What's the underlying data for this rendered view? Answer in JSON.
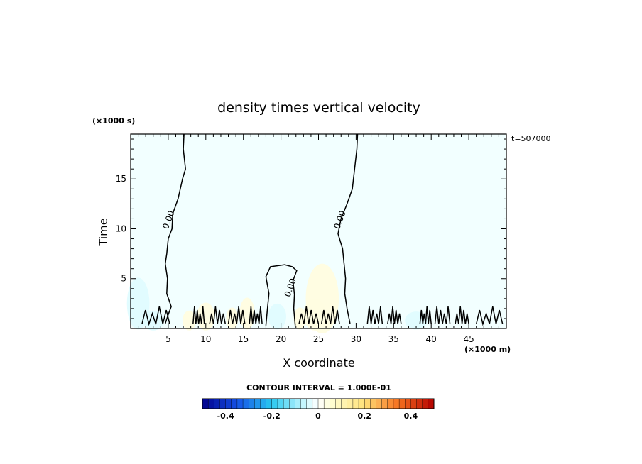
{
  "chart_data": {
    "type": "heatmap",
    "title": "density times vertical velocity",
    "xlabel": "X coordinate",
    "ylabel": "Time",
    "x_unit": "(×1000 m)",
    "y_unit": "(×1000 s)",
    "time_stamp": "t=507000",
    "xlim": [
      0,
      50
    ],
    "ylim": [
      0,
      19.5
    ],
    "x_ticks": [
      5,
      10,
      15,
      20,
      25,
      30,
      35,
      40,
      45
    ],
    "x_tick_labels": [
      "5",
      "10",
      "15",
      "20",
      "25",
      "30",
      "35",
      "40",
      "45"
    ],
    "y_ticks": [
      5,
      10,
      15
    ],
    "y_tick_labels": [
      "5",
      "10",
      "15"
    ],
    "contour_interval_text": "CONTOUR INTERVAL = 1.000E-01",
    "contour_interval": 0.1,
    "contour_label": "0.00",
    "contour_zero_lines": [
      {
        "name": "left",
        "points": [
          [
            7.1,
            19.5
          ],
          [
            7.0,
            18
          ],
          [
            7.3,
            16
          ],
          [
            6.9,
            15
          ],
          [
            6.3,
            13
          ],
          [
            5.6,
            11.5
          ],
          [
            5.5,
            10
          ],
          [
            5.0,
            9
          ],
          [
            4.8,
            7.5
          ],
          [
            4.6,
            6.5
          ],
          [
            4.9,
            5
          ],
          [
            4.8,
            3.5
          ],
          [
            5.4,
            2.2
          ],
          [
            5.0,
            1.4
          ],
          [
            4.6,
            0.5
          ]
        ]
      },
      {
        "name": "right",
        "points": [
          [
            30.2,
            19.5
          ],
          [
            30.1,
            18
          ],
          [
            29.8,
            16
          ],
          [
            29.5,
            14
          ],
          [
            28.8,
            12.5
          ],
          [
            28.0,
            11
          ],
          [
            27.6,
            9.5
          ],
          [
            28.2,
            8
          ],
          [
            28.4,
            6.5
          ],
          [
            28.6,
            5
          ],
          [
            28.5,
            3.5
          ],
          [
            28.8,
            2
          ],
          [
            29.2,
            0.5
          ]
        ]
      },
      {
        "name": "center",
        "points": [
          [
            18.0,
            0.3
          ],
          [
            18.2,
            2
          ],
          [
            18.4,
            3.5
          ],
          [
            18.0,
            5.2
          ],
          [
            18.6,
            6.2
          ],
          [
            20.5,
            6.4
          ],
          [
            21.5,
            6.2
          ],
          [
            22.1,
            5.8
          ],
          [
            21.6,
            4.8
          ],
          [
            21.8,
            3.4
          ],
          [
            21.7,
            2
          ],
          [
            21.9,
            0.3
          ]
        ]
      }
    ],
    "colorbar": {
      "vmin": -0.5,
      "vmax": 0.5,
      "step": 0.025,
      "tick_values": [
        -0.4,
        -0.2,
        0,
        0.2,
        0.4
      ],
      "tick_labels": [
        "-0.4",
        "-0.2",
        "0",
        "0.2",
        "0.4"
      ]
    },
    "colors": {
      "background_field": "#f2ffff",
      "neg_strong": "#00008b",
      "neg_weak": "#dffcff",
      "pos_weak": "#fffde0",
      "pos_strong": "#b30000",
      "contour_line": "#000000"
    }
  }
}
